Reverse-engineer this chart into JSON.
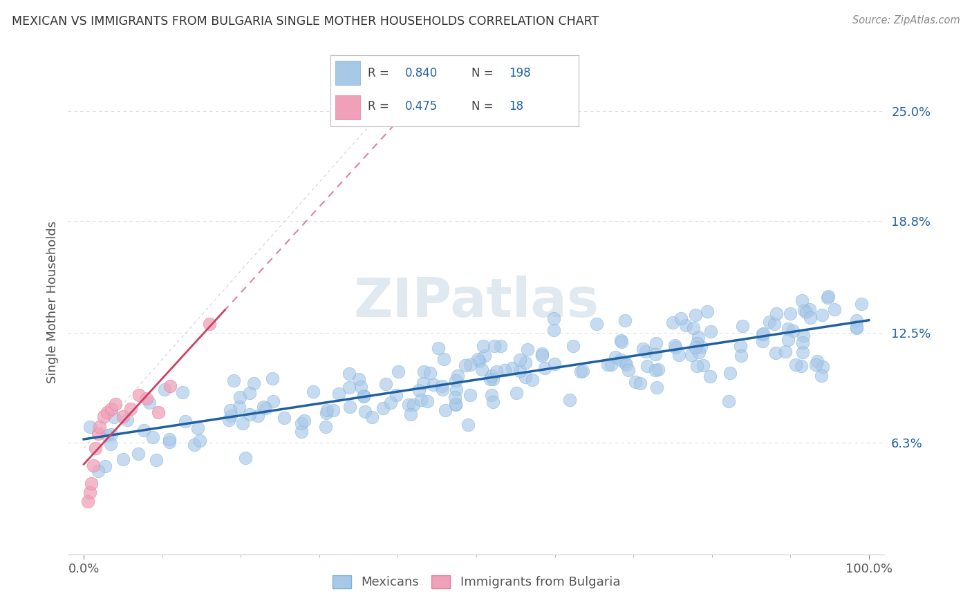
{
  "title": "MEXICAN VS IMMIGRANTS FROM BULGARIA SINGLE MOTHER HOUSEHOLDS CORRELATION CHART",
  "source": "Source: ZipAtlas.com",
  "ylabel": "Single Mother Households",
  "ytick_labels": [
    "6.3%",
    "12.5%",
    "18.8%",
    "25.0%"
  ],
  "ytick_values": [
    0.063,
    0.125,
    0.188,
    0.25
  ],
  "background_color": "#ffffff",
  "title_color": "#333333",
  "source_color": "#888888",
  "blue_scatter_color": "#a8c8e8",
  "blue_scatter_edge": "#7ab0d8",
  "blue_line_color": "#2060a0",
  "pink_scatter_color": "#f0a0b8",
  "pink_scatter_edge": "#e080a0",
  "pink_line_color": "#d04060",
  "pink_dash_color": "#e08098",
  "grid_color": "#dddddd",
  "ref_line_color": "#dddddd",
  "legend_R1": "0.840",
  "legend_N1": "198",
  "legend_R2": "0.475",
  "legend_N2": "18",
  "mexicans_label": "Mexicans",
  "bulgaria_label": "Immigrants from Bulgaria",
  "xlim": [
    -0.02,
    1.02
  ],
  "ylim": [
    0.0,
    0.285
  ]
}
